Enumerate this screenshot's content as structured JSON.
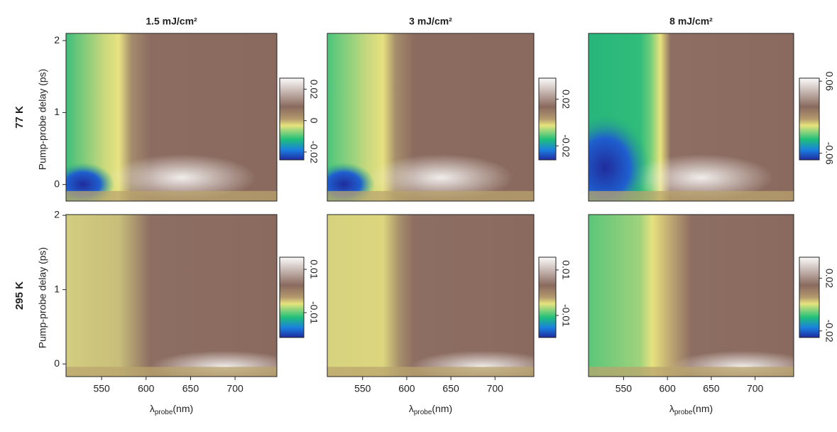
{
  "chart_data": [
    {
      "type": "heatmap",
      "title": "1.5 mJ/cm²",
      "row_label": "77 K",
      "ylabel": "Pump-probe delay (ps)",
      "ylim": [
        -0.23,
        2.1
      ],
      "yticks": [
        0,
        1,
        2
      ],
      "colorbar": {
        "lim": [
          -0.025,
          0.027
        ],
        "ticks": [
          -0.02,
          0,
          0.02
        ]
      }
    },
    {
      "type": "heatmap",
      "title": "3 mJ/cm²",
      "colorbar": {
        "lim": [
          -0.032,
          0.038
        ],
        "ticks": [
          -0.02,
          0.02
        ]
      }
    },
    {
      "type": "heatmap",
      "title": "8 mJ/cm²",
      "colorbar": {
        "lim": [
          -0.071,
          0.065
        ],
        "ticks": [
          -0.06,
          0.06
        ]
      }
    },
    {
      "type": "heatmap",
      "row_label": "295 K",
      "ylabel": "Pump-probe delay (ps)",
      "xlabel": {
        "symbol": "λ",
        "subscript": "probe",
        "unit": "(nm)"
      },
      "xlim": [
        510,
        747
      ],
      "xticks": [
        550,
        600,
        650,
        700
      ],
      "ylim": [
        -0.17,
        2.01
      ],
      "yticks": [
        0,
        1,
        2
      ],
      "colorbar": {
        "lim": [
          -0.0215,
          0.0156
        ],
        "ticks": [
          -0.01,
          0.01
        ]
      }
    },
    {
      "type": "heatmap",
      "xlabel": {
        "symbol": "λ",
        "subscript": "probe",
        "unit": "(nm)"
      },
      "xlim": [
        510,
        744
      ],
      "xticks": [
        550,
        600,
        650,
        700
      ],
      "colorbar": {
        "lim": [
          -0.0197,
          0.0156
        ],
        "ticks": [
          -0.01,
          0.01
        ]
      }
    },
    {
      "type": "heatmap",
      "xlabel": {
        "symbol": "λ",
        "subscript": "probe",
        "unit": "(nm)"
      },
      "xlim": [
        510,
        744
      ],
      "xticks": [
        550,
        600,
        650,
        700
      ],
      "colorbar": {
        "lim": [
          -0.025,
          0.036
        ],
        "ticks": [
          -0.02,
          0.02
        ]
      }
    }
  ]
}
